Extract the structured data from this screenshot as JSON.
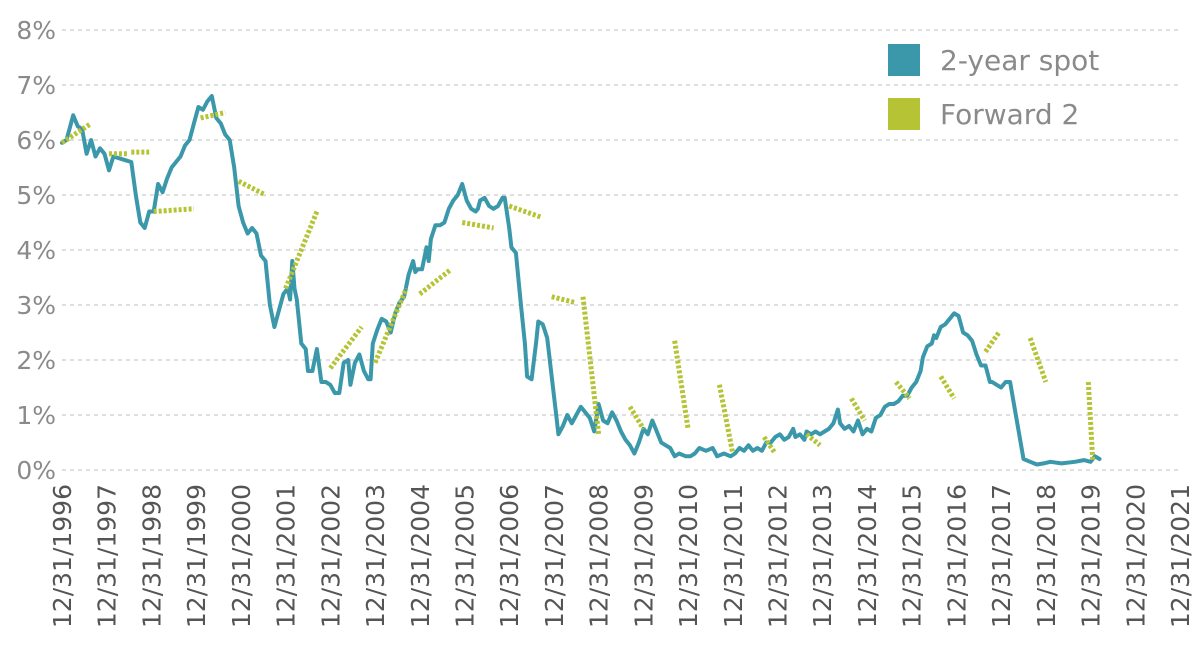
{
  "chart_data": {
    "type": "line",
    "title": "",
    "xlabel": "",
    "ylabel": "",
    "y_unit": "%",
    "ylim": [
      0,
      8
    ],
    "y_ticks": [
      "0%",
      "1%",
      "2%",
      "3%",
      "4%",
      "5%",
      "6%",
      "7%",
      "8%"
    ],
    "x_ticks": [
      "12/31/1996",
      "12/31/1997",
      "12/31/1998",
      "12/31/1999",
      "12/31/2000",
      "12/31/2001",
      "12/31/2002",
      "12/31/2003",
      "12/31/2004",
      "12/31/2005",
      "12/31/2006",
      "12/31/2007",
      "12/31/2008",
      "12/31/2009",
      "12/31/2010",
      "12/31/2011",
      "12/31/2012",
      "12/31/2013",
      "12/31/2014",
      "12/31/2015",
      "12/31/2016",
      "12/31/2017",
      "12/31/2018",
      "12/31/2019",
      "12/31/2020",
      "12/31/2021"
    ],
    "grid": true,
    "legend_position": "top-right",
    "series": [
      {
        "name": "2-year spot",
        "color": "#3a98aa",
        "style": "line",
        "points": [
          [
            1996.95,
            5.95
          ],
          [
            1997.05,
            6.0
          ],
          [
            1997.2,
            6.45
          ],
          [
            1997.3,
            6.25
          ],
          [
            1997.4,
            6.2
          ],
          [
            1997.5,
            5.75
          ],
          [
            1997.6,
            6.0
          ],
          [
            1997.7,
            5.7
          ],
          [
            1997.8,
            5.85
          ],
          [
            1997.9,
            5.75
          ],
          [
            1998.0,
            5.45
          ],
          [
            1998.1,
            5.7
          ],
          [
            1998.3,
            5.65
          ],
          [
            1998.5,
            5.6
          ],
          [
            1998.6,
            5.0
          ],
          [
            1998.7,
            4.5
          ],
          [
            1998.8,
            4.4
          ],
          [
            1998.9,
            4.7
          ],
          [
            1999.0,
            4.7
          ],
          [
            1999.1,
            5.2
          ],
          [
            1999.2,
            5.05
          ],
          [
            1999.3,
            5.3
          ],
          [
            1999.4,
            5.5
          ],
          [
            1999.5,
            5.6
          ],
          [
            1999.6,
            5.7
          ],
          [
            1999.7,
            5.9
          ],
          [
            1999.8,
            6.0
          ],
          [
            1999.9,
            6.3
          ],
          [
            2000.0,
            6.6
          ],
          [
            2000.1,
            6.55
          ],
          [
            2000.2,
            6.7
          ],
          [
            2000.3,
            6.8
          ],
          [
            2000.4,
            6.4
          ],
          [
            2000.5,
            6.3
          ],
          [
            2000.6,
            6.1
          ],
          [
            2000.7,
            6.0
          ],
          [
            2000.8,
            5.5
          ],
          [
            2000.9,
            4.8
          ],
          [
            2001.0,
            4.5
          ],
          [
            2001.1,
            4.3
          ],
          [
            2001.2,
            4.4
          ],
          [
            2001.3,
            4.3
          ],
          [
            2001.4,
            3.9
          ],
          [
            2001.5,
            3.8
          ],
          [
            2001.6,
            3.0
          ],
          [
            2001.7,
            2.6
          ],
          [
            2001.8,
            2.9
          ],
          [
            2001.9,
            3.2
          ],
          [
            2002.0,
            3.3
          ],
          [
            2002.05,
            3.1
          ],
          [
            2002.1,
            3.8
          ],
          [
            2002.15,
            3.3
          ],
          [
            2002.2,
            3.1
          ],
          [
            2002.3,
            2.3
          ],
          [
            2002.4,
            2.2
          ],
          [
            2002.45,
            1.8
          ],
          [
            2002.55,
            1.8
          ],
          [
            2002.65,
            2.2
          ],
          [
            2002.75,
            1.6
          ],
          [
            2002.85,
            1.6
          ],
          [
            2002.95,
            1.55
          ],
          [
            2003.05,
            1.4
          ],
          [
            2003.15,
            1.4
          ],
          [
            2003.25,
            1.95
          ],
          [
            2003.35,
            2.0
          ],
          [
            2003.4,
            1.55
          ],
          [
            2003.5,
            1.95
          ],
          [
            2003.6,
            2.1
          ],
          [
            2003.7,
            1.8
          ],
          [
            2003.8,
            1.65
          ],
          [
            2003.85,
            1.65
          ],
          [
            2003.9,
            2.3
          ],
          [
            2004.0,
            2.55
          ],
          [
            2004.1,
            2.75
          ],
          [
            2004.2,
            2.7
          ],
          [
            2004.3,
            2.5
          ],
          [
            2004.4,
            2.85
          ],
          [
            2004.5,
            3.05
          ],
          [
            2004.6,
            3.15
          ],
          [
            2004.7,
            3.55
          ],
          [
            2004.8,
            3.8
          ],
          [
            2004.85,
            3.6
          ],
          [
            2004.9,
            3.65
          ],
          [
            2005.0,
            3.65
          ],
          [
            2005.1,
            4.05
          ],
          [
            2005.15,
            3.8
          ],
          [
            2005.2,
            4.2
          ],
          [
            2005.3,
            4.45
          ],
          [
            2005.4,
            4.45
          ],
          [
            2005.5,
            4.5
          ],
          [
            2005.6,
            4.75
          ],
          [
            2005.7,
            4.9
          ],
          [
            2005.8,
            5.0
          ],
          [
            2005.9,
            5.2
          ],
          [
            2006.0,
            4.9
          ],
          [
            2006.1,
            4.75
          ],
          [
            2006.2,
            4.7
          ],
          [
            2006.25,
            4.75
          ],
          [
            2006.3,
            4.9
          ],
          [
            2006.4,
            4.95
          ],
          [
            2006.5,
            4.8
          ],
          [
            2006.6,
            4.75
          ],
          [
            2006.7,
            4.8
          ],
          [
            2006.8,
            4.95
          ],
          [
            2006.85,
            4.95
          ],
          [
            2006.95,
            4.4
          ],
          [
            2007.0,
            4.05
          ],
          [
            2007.1,
            3.95
          ],
          [
            2007.2,
            3.1
          ],
          [
            2007.3,
            2.3
          ],
          [
            2007.35,
            1.7
          ],
          [
            2007.45,
            1.65
          ],
          [
            2007.55,
            2.3
          ],
          [
            2007.6,
            2.7
          ],
          [
            2007.7,
            2.65
          ],
          [
            2007.8,
            2.4
          ],
          [
            2007.9,
            1.7
          ],
          [
            2008.0,
            1.0
          ],
          [
            2008.05,
            0.65
          ],
          [
            2008.15,
            0.8
          ],
          [
            2008.25,
            1.0
          ],
          [
            2008.35,
            0.85
          ],
          [
            2008.45,
            1.0
          ],
          [
            2008.55,
            1.15
          ],
          [
            2008.65,
            1.05
          ],
          [
            2008.75,
            0.95
          ],
          [
            2008.85,
            0.7
          ],
          [
            2008.95,
            1.2
          ],
          [
            2009.05,
            0.9
          ],
          [
            2009.15,
            0.85
          ],
          [
            2009.25,
            1.05
          ],
          [
            2009.35,
            0.9
          ],
          [
            2009.45,
            0.7
          ],
          [
            2009.55,
            0.55
          ],
          [
            2009.65,
            0.45
          ],
          [
            2009.75,
            0.3
          ],
          [
            2009.85,
            0.5
          ],
          [
            2009.95,
            0.75
          ],
          [
            2010.05,
            0.65
          ],
          [
            2010.15,
            0.9
          ],
          [
            2010.25,
            0.7
          ],
          [
            2010.35,
            0.5
          ],
          [
            2010.45,
            0.45
          ],
          [
            2010.55,
            0.4
          ],
          [
            2010.65,
            0.25
          ],
          [
            2010.75,
            0.3
          ],
          [
            2010.9,
            0.25
          ],
          [
            2011.0,
            0.25
          ],
          [
            2011.1,
            0.3
          ],
          [
            2011.2,
            0.4
          ],
          [
            2011.35,
            0.35
          ],
          [
            2011.5,
            0.4
          ],
          [
            2011.6,
            0.25
          ],
          [
            2011.75,
            0.3
          ],
          [
            2011.9,
            0.25
          ],
          [
            2012.0,
            0.3
          ],
          [
            2012.1,
            0.4
          ],
          [
            2012.2,
            0.35
          ],
          [
            2012.3,
            0.45
          ],
          [
            2012.4,
            0.35
          ],
          [
            2012.5,
            0.4
          ],
          [
            2012.6,
            0.35
          ],
          [
            2012.7,
            0.5
          ],
          [
            2012.8,
            0.5
          ],
          [
            2012.9,
            0.6
          ],
          [
            2013.0,
            0.65
          ],
          [
            2013.1,
            0.55
          ],
          [
            2013.2,
            0.6
          ],
          [
            2013.3,
            0.75
          ],
          [
            2013.35,
            0.6
          ],
          [
            2013.45,
            0.65
          ],
          [
            2013.55,
            0.55
          ],
          [
            2013.6,
            0.7
          ],
          [
            2013.7,
            0.65
          ],
          [
            2013.8,
            0.7
          ],
          [
            2013.9,
            0.65
          ],
          [
            2014.0,
            0.7
          ],
          [
            2014.1,
            0.75
          ],
          [
            2014.2,
            0.85
          ],
          [
            2014.3,
            1.1
          ],
          [
            2014.35,
            0.85
          ],
          [
            2014.45,
            0.75
          ],
          [
            2014.55,
            0.8
          ],
          [
            2014.65,
            0.7
          ],
          [
            2014.75,
            0.9
          ],
          [
            2014.85,
            0.65
          ],
          [
            2014.95,
            0.75
          ],
          [
            2015.05,
            0.7
          ],
          [
            2015.15,
            0.95
          ],
          [
            2015.25,
            1.0
          ],
          [
            2015.35,
            1.15
          ],
          [
            2015.45,
            1.2
          ],
          [
            2015.55,
            1.2
          ],
          [
            2015.65,
            1.25
          ],
          [
            2015.75,
            1.35
          ],
          [
            2015.85,
            1.35
          ],
          [
            2015.95,
            1.5
          ],
          [
            2016.05,
            1.6
          ],
          [
            2016.15,
            1.8
          ],
          [
            2016.2,
            2.05
          ],
          [
            2016.3,
            2.25
          ],
          [
            2016.4,
            2.3
          ],
          [
            2016.45,
            2.45
          ],
          [
            2016.5,
            2.4
          ],
          [
            2016.6,
            2.6
          ],
          [
            2016.7,
            2.65
          ],
          [
            2016.8,
            2.75
          ],
          [
            2016.9,
            2.85
          ],
          [
            2017.0,
            2.8
          ],
          [
            2017.1,
            2.5
          ],
          [
            2017.2,
            2.45
          ],
          [
            2017.3,
            2.35
          ],
          [
            2017.4,
            2.1
          ],
          [
            2017.5,
            1.9
          ],
          [
            2017.6,
            1.9
          ],
          [
            2017.7,
            1.6
          ],
          [
            2017.75,
            1.6
          ],
          [
            2017.85,
            1.55
          ],
          [
            2017.95,
            1.5
          ],
          [
            2018.05,
            1.6
          ],
          [
            2018.15,
            1.6
          ],
          [
            2018.3,
            0.9
          ],
          [
            2018.45,
            0.2
          ],
          [
            2018.6,
            0.15
          ],
          [
            2018.75,
            0.1
          ],
          [
            2018.9,
            0.12
          ],
          [
            2019.05,
            0.15
          ],
          [
            2019.3,
            0.12
          ],
          [
            2019.6,
            0.15
          ],
          [
            2019.8,
            0.18
          ],
          [
            2019.95,
            0.15
          ],
          [
            2020.05,
            0.25
          ],
          [
            2020.15,
            0.2
          ]
        ]
      },
      {
        "name": "Forward 2",
        "color": "#b5c334",
        "style": "step-dashes",
        "points": [
          [
            1996.95,
            5.95
          ],
          [
            1997.6,
            6.3
          ],
          [
            1998.0,
            5.75
          ],
          [
            1998.4,
            5.75
          ],
          [
            1998.5,
            5.78
          ],
          [
            1998.9,
            5.78
          ],
          [
            1999.0,
            4.7
          ],
          [
            1999.9,
            4.75
          ],
          [
            2000.05,
            6.4
          ],
          [
            2000.6,
            6.5
          ],
          [
            2000.9,
            5.25
          ],
          [
            2001.5,
            5.0
          ],
          [
            2001.95,
            3.3
          ],
          [
            2002.65,
            4.7
          ],
          [
            2002.95,
            1.85
          ],
          [
            2003.65,
            2.6
          ],
          [
            2003.95,
            1.95
          ],
          [
            2004.65,
            3.3
          ],
          [
            2004.95,
            3.2
          ],
          [
            2005.65,
            3.65
          ],
          [
            2005.9,
            4.5
          ],
          [
            2006.6,
            4.4
          ],
          [
            2006.95,
            4.8
          ],
          [
            2007.65,
            4.6
          ],
          [
            2007.9,
            3.15
          ],
          [
            2008.4,
            3.05
          ],
          [
            2008.6,
            3.15
          ],
          [
            2008.95,
            0.65
          ],
          [
            2009.65,
            1.15
          ],
          [
            2009.95,
            0.75
          ],
          [
            2010.65,
            2.35
          ],
          [
            2010.95,
            0.75
          ],
          [
            2011.65,
            1.55
          ],
          [
            2011.95,
            0.3
          ],
          [
            2012.65,
            0.6
          ],
          [
            2012.9,
            0.3
          ],
          [
            2013.6,
            0.65
          ],
          [
            2013.9,
            0.45
          ],
          [
            2014.6,
            1.3
          ],
          [
            2014.9,
            0.9
          ],
          [
            2015.6,
            1.6
          ],
          [
            2015.9,
            1.3
          ],
          [
            2016.6,
            1.7
          ],
          [
            2016.9,
            1.3
          ],
          [
            2017.6,
            2.15
          ],
          [
            2017.9,
            2.5
          ],
          [
            2018.6,
            2.4
          ],
          [
            2018.95,
            1.6
          ],
          [
            2019.9,
            1.6
          ],
          [
            2020.0,
            0.15
          ],
          [
            2020.9,
            0.2
          ]
        ]
      }
    ]
  },
  "legend": [
    {
      "label": "2-year spot",
      "color": "#3a98aa"
    },
    {
      "label": "Forward 2",
      "color": "#b5c334"
    }
  ]
}
